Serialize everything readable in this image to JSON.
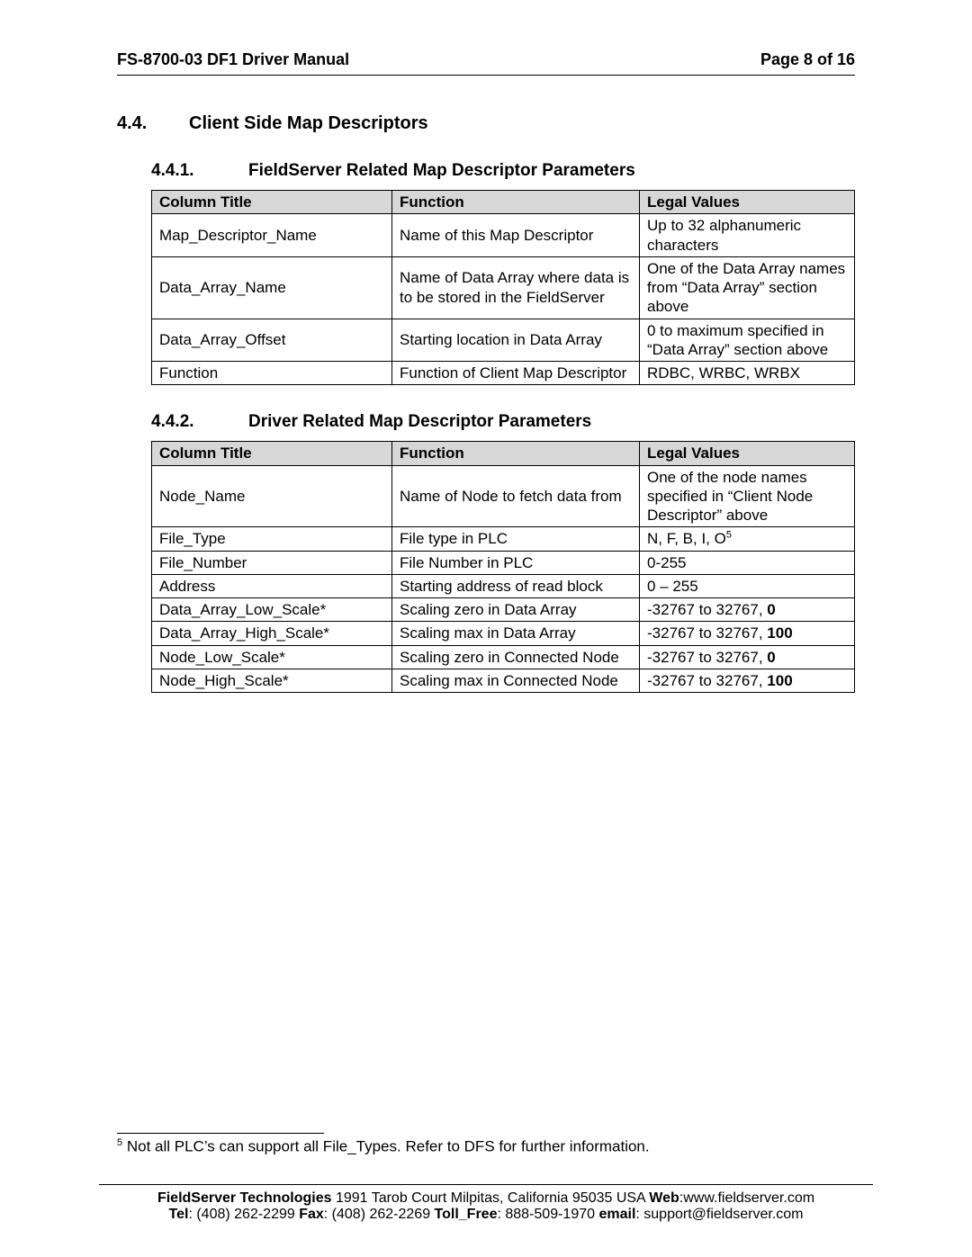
{
  "header": {
    "left": "FS-8700-03 DF1 Driver Manual",
    "right": "Page 8 of 16"
  },
  "section": {
    "number": "4.4.",
    "title": "Client Side Map Descriptors"
  },
  "sub1": {
    "number": "4.4.1.",
    "title": "FieldServer Related Map Descriptor Parameters",
    "columns": [
      "Column Title",
      "Function",
      "Legal Values"
    ],
    "rows": [
      {
        "c1": "Map_Descriptor_Name",
        "c2": "Name of this Map Descriptor",
        "c3": "Up to 32 alphanumeric characters"
      },
      {
        "c1": "Data_Array_Name",
        "c2": "Name of Data Array where data is to be stored in the FieldServer",
        "c3": "One of the Data Array names from “Data Array” section above"
      },
      {
        "c1": "Data_Array_Offset",
        "c2": "Starting location in Data Array",
        "c3": "0 to maximum specified in “Data Array” section above"
      },
      {
        "c1": "Function",
        "c2": "Function of Client Map Descriptor",
        "c3": "RDBC, WRBC, WRBX"
      }
    ]
  },
  "sub2": {
    "number": "4.4.2.",
    "title": "Driver Related Map Descriptor Parameters",
    "columns": [
      "Column Title",
      "Function",
      "Legal Values"
    ],
    "rows": [
      {
        "c1": "Node_Name",
        "c2": "Name of Node to fetch data from",
        "c3": "One of the node names specified in “Client Node Descriptor” above"
      },
      {
        "c1": "File_Type",
        "c2": "File type in PLC",
        "c3_pre": "N, F, B, I, O",
        "c3_sup": "5"
      },
      {
        "c1": "File_Number",
        "c2": "File Number in PLC",
        "c3": "0-255"
      },
      {
        "c1": "Address",
        "c2": "Starting address of read block",
        "c3": "0 – 255"
      },
      {
        "c1": "Data_Array_Low_Scale*",
        "c2": "Scaling zero in Data Array",
        "c3_pre": "-32767 to 32767, ",
        "c3_bold": "0"
      },
      {
        "c1": "Data_Array_High_Scale*",
        "c2": "Scaling max in Data Array",
        "c3_pre": "-32767 to 32767, ",
        "c3_bold": "100"
      },
      {
        "c1": "Node_Low_Scale*",
        "c2": "Scaling zero in Connected Node",
        "c3_pre": "-32767 to 32767, ",
        "c3_bold": "0"
      },
      {
        "c1": "Node_High_Scale*",
        "c2": "Scaling max in Connected Node",
        "c3_pre": "-32767 to 32767, ",
        "c3_bold": "100"
      }
    ]
  },
  "footnote": {
    "marker": "5",
    "text": " Not all PLC’s can support all File_Types.  Refer to DFS for further information."
  },
  "footer": {
    "line1_a": "FieldServer Technologies",
    "line1_b": " 1991 Tarob Court Milpitas, California 95035 USA  ",
    "line1_c": "Web",
    "line1_d": ":www.fieldserver.com",
    "line2_a": "Tel",
    "line2_b": ": (408) 262-2299   ",
    "line2_c": "Fax",
    "line2_d": ": (408) 262-2269   ",
    "line2_e": "Toll_Free",
    "line2_f": ": 888-509-1970   ",
    "line2_g": "email",
    "line2_h": ": support@fieldserver.com"
  }
}
